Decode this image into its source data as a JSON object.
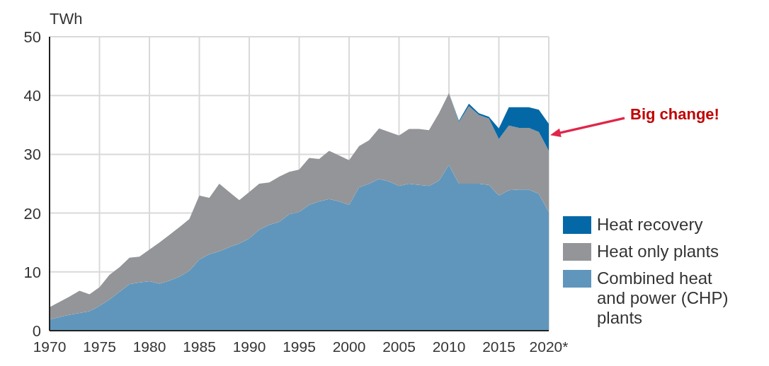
{
  "chart_data": {
    "type": "area",
    "stacked": true,
    "ylabel": "TWh",
    "x": [
      1970,
      1971,
      1972,
      1973,
      1974,
      1975,
      1976,
      1977,
      1978,
      1979,
      1980,
      1981,
      1982,
      1983,
      1984,
      1985,
      1986,
      1987,
      1988,
      1989,
      1990,
      1991,
      1992,
      1993,
      1994,
      1995,
      1996,
      1997,
      1998,
      1999,
      2000,
      2001,
      2002,
      2003,
      2004,
      2005,
      2006,
      2007,
      2008,
      2009,
      2010,
      2011,
      2012,
      2013,
      2014,
      2015,
      2016,
      2017,
      2018,
      2019,
      2020
    ],
    "series": [
      {
        "name": "Combined heat and power (CHP) plants",
        "color": "#6096bb",
        "values": [
          1.9,
          2.3,
          2.7,
          3.0,
          3.3,
          4.2,
          5.3,
          6.6,
          7.9,
          8.2,
          8.4,
          8.0,
          8.5,
          9.2,
          10.2,
          12.1,
          13.0,
          13.5,
          14.2,
          14.8,
          15.7,
          17.2,
          18.0,
          18.5,
          19.8,
          20.2,
          21.4,
          22.0,
          22.4,
          22.0,
          21.4,
          24.4,
          25.0,
          25.8,
          25.4,
          24.6,
          25.0,
          24.8,
          24.6,
          25.5,
          28.2,
          25.0,
          25.0,
          25.0,
          24.8,
          23.0,
          23.9,
          24.0,
          24.0,
          23.3,
          20.2
        ]
      },
      {
        "name": "Heat only plants",
        "color": "#939598",
        "values": [
          2.1,
          2.6,
          3.1,
          3.8,
          2.9,
          3.2,
          4.2,
          4.2,
          4.5,
          4.4,
          5.4,
          7.0,
          7.8,
          8.4,
          8.8,
          10.9,
          9.6,
          11.5,
          9.4,
          7.4,
          7.9,
          7.8,
          7.2,
          7.7,
          7.2,
          7.2,
          8.0,
          7.2,
          8.2,
          7.8,
          7.6,
          7.0,
          7.4,
          8.6,
          8.4,
          8.6,
          9.3,
          9.5,
          9.5,
          11.5,
          12.2,
          10.5,
          13.2,
          11.7,
          11.3,
          9.6,
          11.0,
          10.5,
          10.5,
          10.5,
          10.4
        ]
      },
      {
        "name": "Heat recovery",
        "color": "#0568a6",
        "values": [
          0,
          0,
          0,
          0,
          0,
          0,
          0,
          0,
          0,
          0,
          0,
          0,
          0,
          0,
          0,
          0,
          0,
          0,
          0,
          0,
          0,
          0,
          0,
          0,
          0,
          0,
          0,
          0,
          0,
          0,
          0,
          0,
          0,
          0,
          0,
          0,
          0,
          0,
          0,
          0,
          0,
          0.2,
          0.4,
          0.3,
          0.3,
          1.8,
          3.1,
          3.5,
          3.5,
          3.8,
          4.6
        ]
      }
    ],
    "xlim": [
      1970,
      2020
    ],
    "xticks": [
      1970,
      1975,
      1980,
      1985,
      1990,
      1995,
      2000,
      2005,
      2010,
      2015,
      {
        "value": 2020,
        "label": "2020*"
      }
    ],
    "ylim": [
      0,
      50
    ],
    "yticks": [
      0,
      10,
      20,
      30,
      40,
      50
    ],
    "grid": true,
    "legend": "bottom right",
    "annotations": [
      "Big change!"
    ]
  }
}
